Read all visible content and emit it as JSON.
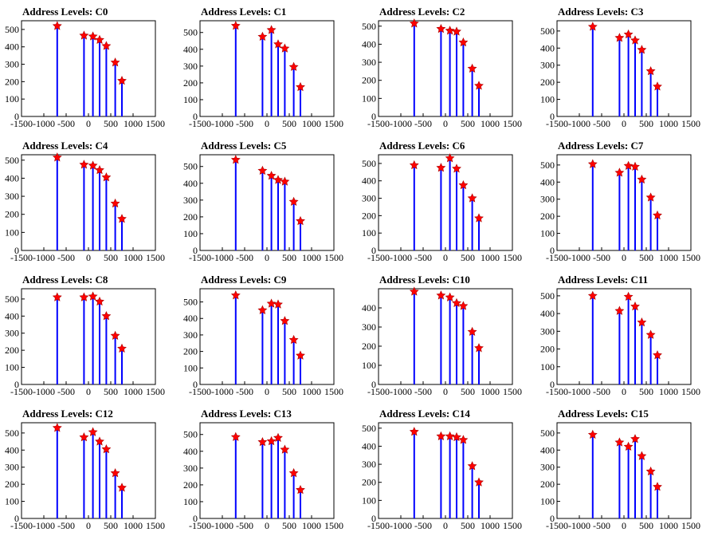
{
  "chart_data": [
    {
      "type": "bar",
      "title": "Address Levels: C0",
      "xlim": [
        -1500,
        1500
      ],
      "ylim": [
        0,
        550
      ],
      "x": [
        -700,
        -100,
        100,
        250,
        400,
        600,
        750
      ],
      "values": [
        520,
        465,
        460,
        440,
        405,
        310,
        205
      ],
      "xticks": [
        -1500,
        -1000,
        -500,
        0,
        500,
        1000,
        1500
      ],
      "yticks": [
        0,
        100,
        200,
        300,
        400,
        500
      ],
      "xticklabels": [
        "-1500",
        "-1000",
        "-500",
        "0",
        "500",
        "1000",
        "1500"
      ],
      "yticklabels": [
        "0",
        "100",
        "200",
        "300",
        "400",
        "500"
      ]
    },
    {
      "type": "bar",
      "title": "Address Levels: C1",
      "xlim": [
        -1500,
        1500
      ],
      "ylim": [
        0,
        570
      ],
      "x": [
        -700,
        -100,
        100,
        250,
        400,
        600,
        750
      ],
      "values": [
        540,
        475,
        515,
        430,
        405,
        295,
        175
      ],
      "xticks": [
        -1500,
        -1000,
        -500,
        0,
        500,
        1000,
        1500
      ],
      "yticks": [
        0,
        100,
        200,
        300,
        400,
        500
      ],
      "xticklabels": [
        "-1500",
        "-1000",
        "-500",
        "0",
        "500",
        "1000",
        "1500"
      ],
      "yticklabels": [
        "0",
        "100",
        "200",
        "300",
        "400",
        "500"
      ]
    },
    {
      "type": "bar",
      "title": "Address Levels: C2",
      "xlim": [
        -1500,
        1500
      ],
      "ylim": [
        0,
        530
      ],
      "x": [
        -700,
        -100,
        100,
        250,
        400,
        600,
        750
      ],
      "values": [
        515,
        485,
        475,
        470,
        410,
        265,
        170
      ],
      "xticks": [
        -1500,
        -1000,
        -500,
        0,
        500,
        1000,
        1500
      ],
      "yticks": [
        0,
        100,
        200,
        300,
        400,
        500
      ],
      "xticklabels": [
        "-1500",
        "-1000",
        "-500",
        "0",
        "500",
        "1000",
        "1500"
      ],
      "yticklabels": [
        "0",
        "100",
        "200",
        "300",
        "400",
        "500"
      ]
    },
    {
      "type": "bar",
      "title": "Address Levels: C3",
      "xlim": [
        -1500,
        1500
      ],
      "ylim": [
        0,
        560
      ],
      "x": [
        -700,
        -100,
        100,
        250,
        400,
        600,
        750
      ],
      "values": [
        525,
        460,
        480,
        445,
        390,
        265,
        175
      ],
      "xticks": [
        -1500,
        -1000,
        -500,
        0,
        500,
        1000,
        1500
      ],
      "yticks": [
        0,
        100,
        200,
        300,
        400,
        500
      ],
      "xticklabels": [
        "-1500",
        "-1000",
        "-500",
        "0",
        "500",
        "1000",
        "1500"
      ],
      "yticklabels": [
        "0",
        "100",
        "200",
        "300",
        "400",
        "500"
      ]
    },
    {
      "type": "bar",
      "title": "Address Levels: C4",
      "xlim": [
        -1500,
        1500
      ],
      "ylim": [
        0,
        530
      ],
      "x": [
        -700,
        -100,
        100,
        250,
        400,
        600,
        750
      ],
      "values": [
        515,
        475,
        470,
        445,
        405,
        260,
        175
      ],
      "xticks": [
        -1500,
        -1000,
        -500,
        0,
        500,
        1000,
        1500
      ],
      "yticks": [
        0,
        100,
        200,
        300,
        400,
        500
      ],
      "xticklabels": [
        "-1500",
        "-1000",
        "-500",
        "0",
        "500",
        "1000",
        "1500"
      ],
      "yticklabels": [
        "0",
        "100",
        "200",
        "300",
        "400",
        "500"
      ]
    },
    {
      "type": "bar",
      "title": "Address Levels: C5",
      "xlim": [
        -1500,
        1500
      ],
      "ylim": [
        0,
        570
      ],
      "x": [
        -700,
        -100,
        100,
        250,
        400,
        600,
        750
      ],
      "values": [
        540,
        475,
        445,
        420,
        410,
        290,
        175
      ],
      "xticks": [
        -1500,
        -1000,
        -500,
        0,
        500,
        1000,
        1500
      ],
      "yticks": [
        0,
        100,
        200,
        300,
        400,
        500
      ],
      "xticklabels": [
        "-1500",
        "-1000",
        "-500",
        "0",
        "500",
        "1000",
        "1500"
      ],
      "yticklabels": [
        "0",
        "100",
        "200",
        "300",
        "400",
        "500"
      ]
    },
    {
      "type": "bar",
      "title": "Address Levels: C6",
      "xlim": [
        -1500,
        1500
      ],
      "ylim": [
        0,
        550
      ],
      "x": [
        -700,
        -100,
        100,
        250,
        400,
        600,
        750
      ],
      "values": [
        490,
        475,
        530,
        470,
        375,
        300,
        185
      ],
      "xticks": [
        -1500,
        -1000,
        -500,
        0,
        500,
        1000,
        1500
      ],
      "yticks": [
        0,
        100,
        200,
        300,
        400,
        500
      ],
      "xticklabels": [
        "-1500",
        "-1000",
        "-500",
        "0",
        "500",
        "1000",
        "1500"
      ],
      "yticklabels": [
        "0",
        "100",
        "200",
        "300",
        "400",
        "500"
      ]
    },
    {
      "type": "bar",
      "title": "Address Levels: C7",
      "xlim": [
        -1500,
        1500
      ],
      "ylim": [
        0,
        560
      ],
      "x": [
        -700,
        -100,
        100,
        250,
        400,
        600,
        750
      ],
      "values": [
        505,
        455,
        495,
        490,
        415,
        310,
        205
      ],
      "xticks": [
        -1500,
        -1000,
        -500,
        0,
        500,
        1000,
        1500
      ],
      "yticks": [
        0,
        100,
        200,
        300,
        400,
        500
      ],
      "xticklabels": [
        "-1500",
        "-1000",
        "-500",
        "0",
        "500",
        "1000",
        "1500"
      ],
      "yticklabels": [
        "0",
        "100",
        "200",
        "300",
        "400",
        "500"
      ]
    },
    {
      "type": "bar",
      "title": "Address Levels: C8",
      "xlim": [
        -1500,
        1500
      ],
      "ylim": [
        0,
        560
      ],
      "x": [
        -700,
        -100,
        100,
        250,
        400,
        600,
        750
      ],
      "values": [
        510,
        510,
        515,
        485,
        400,
        285,
        210
      ],
      "xticks": [
        -1500,
        -1000,
        -500,
        0,
        500,
        1000,
        1500
      ],
      "yticks": [
        0,
        100,
        200,
        300,
        400,
        500
      ],
      "xticklabels": [
        "-1500",
        "-1000",
        "-500",
        "0",
        "500",
        "1000",
        "1500"
      ],
      "yticklabels": [
        "0",
        "100",
        "200",
        "300",
        "400",
        "500"
      ]
    },
    {
      "type": "bar",
      "title": "Address Levels: C9",
      "xlim": [
        -1500,
        1500
      ],
      "ylim": [
        0,
        580
      ],
      "x": [
        -700,
        -100,
        100,
        250,
        400,
        600,
        750
      ],
      "values": [
        540,
        450,
        490,
        485,
        385,
        270,
        175
      ],
      "xticks": [
        -1500,
        -1000,
        -500,
        0,
        500,
        1000,
        1500
      ],
      "yticks": [
        0,
        100,
        200,
        300,
        400,
        500
      ],
      "xticklabels": [
        "-1500",
        "-1000",
        "-500",
        "0",
        "500",
        "1000",
        "1500"
      ],
      "yticklabels": [
        "0",
        "100",
        "200",
        "300",
        "400",
        "500"
      ]
    },
    {
      "type": "bar",
      "title": "Address Levels: C10",
      "xlim": [
        -1500,
        1500
      ],
      "ylim": [
        0,
        500
      ],
      "x": [
        -700,
        -100,
        100,
        250,
        400,
        600,
        750
      ],
      "values": [
        485,
        465,
        455,
        425,
        410,
        275,
        190
      ],
      "xticks": [
        -1500,
        -1000,
        -500,
        0,
        500,
        1000,
        1500
      ],
      "yticks": [
        0,
        100,
        200,
        300,
        400
      ],
      "xticklabels": [
        "-1500",
        "-1000",
        "-500",
        "0",
        "500",
        "1000",
        "1500"
      ],
      "yticklabels": [
        "0",
        "100",
        "200",
        "300",
        "400"
      ]
    },
    {
      "type": "bar",
      "title": "Address Levels: C11",
      "xlim": [
        -1500,
        1500
      ],
      "ylim": [
        0,
        540
      ],
      "x": [
        -700,
        -100,
        100,
        250,
        400,
        600,
        750
      ],
      "values": [
        500,
        415,
        495,
        440,
        350,
        280,
        165
      ],
      "xticks": [
        -1500,
        -1000,
        -500,
        0,
        500,
        1000,
        1500
      ],
      "yticks": [
        0,
        100,
        200,
        300,
        400,
        500
      ],
      "xticklabels": [
        "-1500",
        "-1000",
        "-500",
        "0",
        "500",
        "1000",
        "1500"
      ],
      "yticklabels": [
        "0",
        "100",
        "200",
        "300",
        "400",
        "500"
      ]
    },
    {
      "type": "bar",
      "title": "Address Levels: C12",
      "xlim": [
        -1500,
        1500
      ],
      "ylim": [
        0,
        560
      ],
      "x": [
        -700,
        -100,
        100,
        250,
        400,
        600,
        750
      ],
      "values": [
        530,
        475,
        505,
        450,
        405,
        265,
        180
      ],
      "xticks": [
        -1500,
        -1000,
        -500,
        0,
        500,
        1000,
        1500
      ],
      "yticks": [
        0,
        100,
        200,
        300,
        400,
        500
      ],
      "xticklabels": [
        "-1500",
        "-1000",
        "-500",
        "0",
        "500",
        "1000",
        "1500"
      ],
      "yticklabels": [
        "0",
        "100",
        "200",
        "300",
        "400",
        "500"
      ]
    },
    {
      "type": "bar",
      "title": "Address Levels: C13",
      "xlim": [
        -1500,
        1500
      ],
      "ylim": [
        0,
        570
      ],
      "x": [
        -700,
        -100,
        100,
        250,
        400,
        600,
        750
      ],
      "values": [
        485,
        455,
        460,
        480,
        410,
        270,
        170
      ],
      "xticks": [
        -1500,
        -1000,
        -500,
        0,
        500,
        1000,
        1500
      ],
      "yticks": [
        0,
        100,
        200,
        300,
        400,
        500
      ],
      "xticklabels": [
        "-1500",
        "-1000",
        "-500",
        "0",
        "500",
        "1000",
        "1500"
      ],
      "yticklabels": [
        "0",
        "100",
        "200",
        "300",
        "400",
        "500"
      ]
    },
    {
      "type": "bar",
      "title": "Address Levels: C14",
      "xlim": [
        -1500,
        1500
      ],
      "ylim": [
        0,
        530
      ],
      "x": [
        -700,
        -100,
        100,
        250,
        400,
        600,
        750
      ],
      "values": [
        480,
        455,
        455,
        450,
        435,
        290,
        200
      ],
      "xticks": [
        -1500,
        -1000,
        -500,
        0,
        500,
        1000,
        1500
      ],
      "yticks": [
        0,
        100,
        200,
        300,
        400,
        500
      ],
      "xticklabels": [
        "-1500",
        "-1000",
        "-500",
        "0",
        "500",
        "1000",
        "1500"
      ],
      "yticklabels": [
        "0",
        "100",
        "200",
        "300",
        "400",
        "500"
      ]
    },
    {
      "type": "bar",
      "title": "Address Levels: C15",
      "xlim": [
        -1500,
        1500
      ],
      "ylim": [
        0,
        560
      ],
      "x": [
        -700,
        -100,
        100,
        250,
        400,
        600,
        750
      ],
      "values": [
        490,
        445,
        420,
        465,
        365,
        275,
        185
      ],
      "xticks": [
        -1500,
        -1000,
        -500,
        0,
        500,
        1000,
        1500
      ],
      "yticks": [
        0,
        100,
        200,
        300,
        400,
        500
      ],
      "xticklabels": [
        "-1500",
        "-1000",
        "-500",
        "0",
        "500",
        "1000",
        "1500"
      ],
      "yticklabels": [
        "0",
        "100",
        "200",
        "300",
        "400",
        "500"
      ]
    }
  ],
  "colors": {
    "bar": "#0000ff",
    "marker": "#ff0000",
    "axis": "#000000"
  }
}
